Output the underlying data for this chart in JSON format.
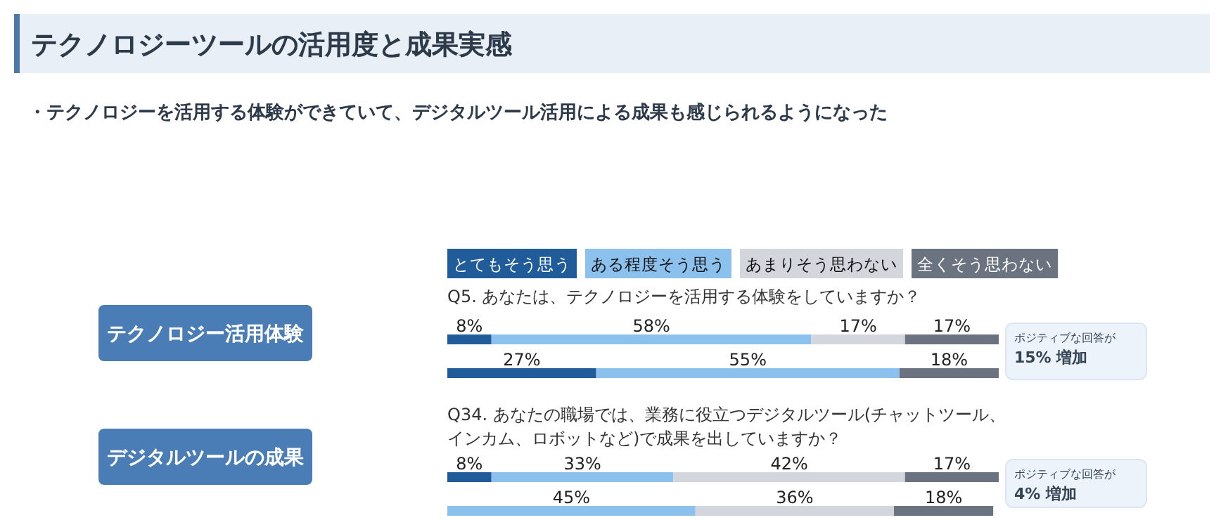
{
  "chart_data": [
    {
      "type": "bar",
      "orientation": "horizontal",
      "stacked": true,
      "legend": "top",
      "title": "Q5. あなたは、テクノロジーを活用する体験をしていますか？",
      "ylabel": "テクノロジー活用体験",
      "annotations": [
        "テクノロジーツールの活用度と成果実感",
        "・テクノロジーを活用する体験ができていて、デジタルツール活用による成果も感じられるようになった",
        "ポジティブな回答が\n15% 増加"
      ],
      "categories": [
        null,
        null
      ],
      "series": [
        {
          "name": "とてもそう思う",
          "color": "#1f5c99",
          "values": [
            8,
            27
          ],
          "value_labels": [
            "8%",
            "27%"
          ]
        },
        {
          "name": "ある程度そう思う",
          "color": "#8cc1ee",
          "values": [
            58,
            55
          ],
          "value_labels": [
            "58%",
            "55%"
          ]
        },
        {
          "name": "あまりそう思わない",
          "color": "#d3d6dd",
          "values": [
            17,
            null
          ],
          "value_labels": [
            "17%",
            null
          ]
        },
        {
          "name": "全くそう思わない",
          "color": "#6b7280",
          "values": [
            17,
            18
          ],
          "value_labels": [
            "17%",
            "18%"
          ]
        }
      ]
    },
    {
      "type": "bar",
      "orientation": "horizontal",
      "stacked": true,
      "title": "Q34. あなたの職場では、業務に役立つデジタルツール(チャットツール、インカム、ロボットなど)で成果を出していますか？",
      "ylabel": "デジタルツールの成果",
      "annotations": [
        "ポジティブな回答が\n4% 増加"
      ],
      "categories": [
        null,
        null
      ],
      "series": [
        {
          "color": "#1f5c99",
          "values": [
            8,
            null
          ],
          "value_labels": [
            "8%",
            null
          ]
        },
        {
          "color": "#8cc1ee",
          "values": [
            33,
            45
          ],
          "value_labels": [
            "33%",
            "45%"
          ]
        },
        {
          "color": "#d3d6dd",
          "values": [
            42,
            36
          ],
          "value_labels": [
            "42%",
            "36%"
          ]
        },
        {
          "color": "#6b7280",
          "values": [
            17,
            18
          ],
          "value_labels": [
            "17%",
            "18%"
          ]
        }
      ]
    }
  ]
}
